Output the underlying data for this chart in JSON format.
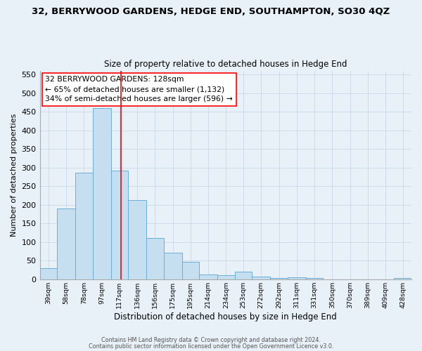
{
  "title": "32, BERRYWOOD GARDENS, HEDGE END, SOUTHAMPTON, SO30 4QZ",
  "subtitle": "Size of property relative to detached houses in Hedge End",
  "xlabel": "Distribution of detached houses by size in Hedge End",
  "ylabel": "Number of detached properties",
  "bin_labels": [
    "39sqm",
    "58sqm",
    "78sqm",
    "97sqm",
    "117sqm",
    "136sqm",
    "156sqm",
    "175sqm",
    "195sqm",
    "214sqm",
    "234sqm",
    "253sqm",
    "272sqm",
    "292sqm",
    "311sqm",
    "331sqm",
    "350sqm",
    "370sqm",
    "389sqm",
    "409sqm",
    "428sqm"
  ],
  "bin_edges": [
    39,
    58,
    78,
    97,
    117,
    136,
    156,
    175,
    195,
    214,
    234,
    253,
    272,
    292,
    311,
    331,
    350,
    370,
    389,
    409,
    428,
    447
  ],
  "bar_values": [
    30,
    190,
    287,
    460,
    292,
    213,
    111,
    72,
    47,
    13,
    11,
    20,
    7,
    4,
    5,
    3,
    0,
    0,
    0,
    0,
    3
  ],
  "bar_color": "#c5dff0",
  "bar_edgecolor": "#6baed6",
  "vline_x": 128,
  "vline_color": "red",
  "ylim": [
    0,
    560
  ],
  "yticks": [
    0,
    50,
    100,
    150,
    200,
    250,
    300,
    350,
    400,
    450,
    500,
    550
  ],
  "annotation_title": "32 BERRYWOOD GARDENS: 128sqm",
  "annotation_line2": "← 65% of detached houses are smaller (1,132)",
  "annotation_line3": "34% of semi-detached houses are larger (596) →",
  "annotation_box_facecolor": "white",
  "annotation_box_edgecolor": "red",
  "grid_color": "#c8d8e8",
  "bg_color": "#e8f0f8",
  "footnote1": "Contains HM Land Registry data © Crown copyright and database right 2024.",
  "footnote2": "Contains public sector information licensed under the Open Government Licence v3.0."
}
